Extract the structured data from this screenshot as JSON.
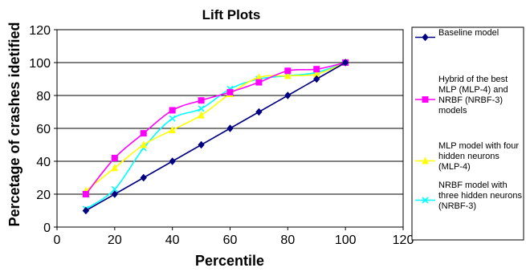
{
  "chart_data": {
    "type": "line",
    "title": "Lift Plots",
    "xlabel": "Percentile",
    "ylabel": "Percetage of crashes idetified",
    "xlim": [
      0,
      120
    ],
    "ylim": [
      0,
      120
    ],
    "xticks": [
      "0",
      "20",
      "40",
      "60",
      "80",
      "100",
      "120"
    ],
    "yticks": [
      "0",
      "20",
      "40",
      "60",
      "80",
      "100",
      "120"
    ],
    "grid": "horizontal",
    "legend_position": "right",
    "x": [
      10,
      20,
      30,
      40,
      50,
      60,
      70,
      80,
      90,
      100
    ],
    "series": [
      {
        "name": "Baseline model",
        "color": "#000080",
        "marker": "diamond",
        "smooth": false,
        "values": [
          10,
          20,
          30,
          40,
          50,
          60,
          70,
          80,
          90,
          100
        ],
        "legend_lines": [
          "Baseline model"
        ]
      },
      {
        "name": "Hybrid of the best MLP (MLP-4) and NRBF (NRBF-3) models",
        "color": "#FF00FF",
        "marker": "square",
        "smooth": true,
        "values": [
          20,
          42,
          57,
          71,
          77,
          82,
          88,
          95,
          96,
          100
        ],
        "legend_lines": [
          "Hybrid of the best",
          "MLP (MLP-4) and",
          "NRBF (NRBF-3)",
          "models"
        ]
      },
      {
        "name": "MLP model with four hidden neurons (MLP-4)",
        "color": "#FFFF00",
        "marker": "triangle",
        "smooth": true,
        "values": [
          22,
          36,
          50,
          59,
          68,
          81,
          91,
          92,
          93,
          100
        ],
        "legend_lines": [
          "MLP model with four",
          "hidden neurons",
          "(MLP-4)"
        ]
      },
      {
        "name": "NRBF model with three hidden neurons (NRBF-3)",
        "color": "#00FFFF",
        "marker": "x",
        "smooth": true,
        "values": [
          11,
          23,
          48,
          66,
          72,
          84,
          90,
          92,
          94,
          100
        ],
        "legend_lines": [
          "NRBF model with",
          "three hidden neurons",
          "(NRBF-3)"
        ]
      }
    ]
  }
}
